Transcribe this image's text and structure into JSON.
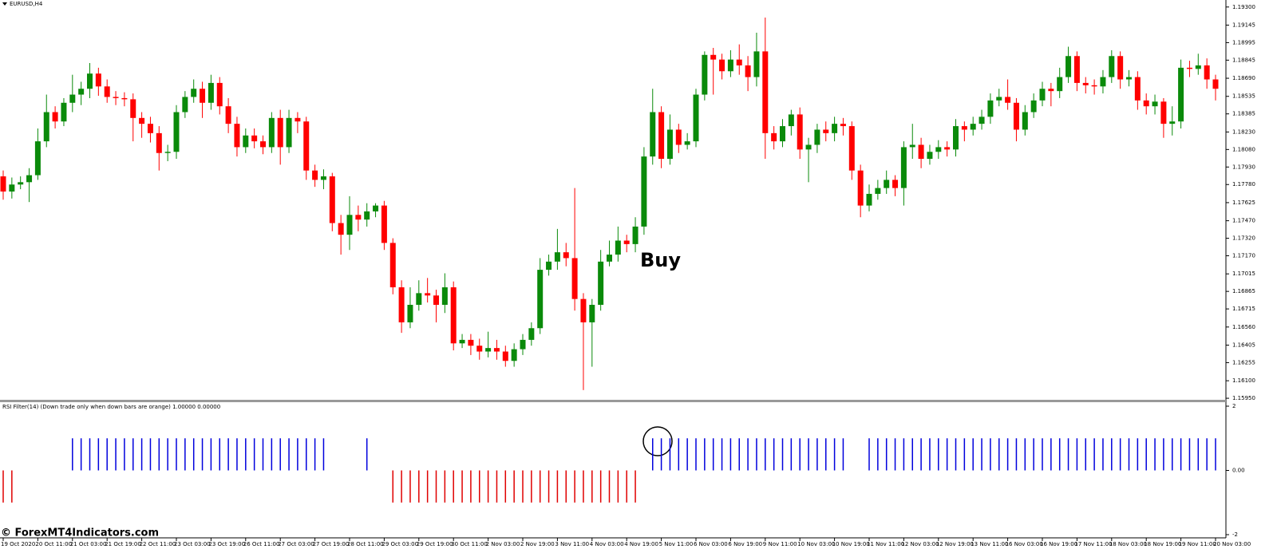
{
  "chart_data": [
    {
      "type": "candlestick",
      "title": "EURUSD,H4",
      "annotations": [
        "Buy"
      ],
      "up_color": "#0a8a0a",
      "down_color": "#ff0000",
      "ylim": [
        1.1593,
        1.1936
      ],
      "yticks": [
        {
          "value": 1.193,
          "label": "1.19300"
        },
        {
          "value": 1.19145,
          "label": "1.19145"
        },
        {
          "value": 1.18995,
          "label": "1.18995"
        },
        {
          "value": 1.18845,
          "label": "1.18845"
        },
        {
          "value": 1.1869,
          "label": "1.18690"
        },
        {
          "value": 1.18535,
          "label": "1.18535"
        },
        {
          "value": 1.18385,
          "label": "1.18385"
        },
        {
          "value": 1.1823,
          "label": "1.18230"
        },
        {
          "value": 1.1808,
          "label": "1.18080"
        },
        {
          "value": 1.1793,
          "label": "1.17930"
        },
        {
          "value": 1.1778,
          "label": "1.17780"
        },
        {
          "value": 1.17625,
          "label": "1.17625"
        },
        {
          "value": 1.1747,
          "label": "1.17470"
        },
        {
          "value": 1.1732,
          "label": "1.17320"
        },
        {
          "value": 1.1717,
          "label": "1.17170"
        },
        {
          "value": 1.17015,
          "label": "1.17015"
        },
        {
          "value": 1.16865,
          "label": "1.16865"
        },
        {
          "value": 1.16715,
          "label": "1.16715"
        },
        {
          "value": 1.1656,
          "label": "1.16560"
        },
        {
          "value": 1.16405,
          "label": "1.16405"
        },
        {
          "value": 1.16255,
          "label": "1.16255"
        },
        {
          "value": 1.161,
          "label": "1.16100"
        },
        {
          "value": 1.1595,
          "label": "1.15950"
        }
      ],
      "categories": [
        "19 Oct 2020",
        null,
        null,
        null,
        "20 Oct 11:00",
        null,
        null,
        null,
        "21 Oct 03:00",
        null,
        null,
        null,
        "21 Oct 19:00",
        null,
        null,
        null,
        "22 Oct 11:00",
        null,
        null,
        null,
        "23 Oct 03:00",
        null,
        null,
        null,
        "23 Oct 19:00",
        null,
        null,
        null,
        "26 Oct 11:00",
        null,
        null,
        null,
        "27 Oct 03:00",
        null,
        null,
        null,
        "27 Oct 19:00",
        null,
        null,
        null,
        "28 Oct 11:00",
        null,
        null,
        null,
        "29 Oct 03:00",
        null,
        null,
        null,
        "29 Oct 19:00",
        null,
        null,
        null,
        "30 Oct 11:00",
        null,
        null,
        null,
        "2 Nov 03:00",
        null,
        null,
        null,
        "2 Nov 19:00",
        null,
        null,
        null,
        "3 Nov 11:00",
        null,
        null,
        null,
        "4 Nov 03:00",
        null,
        null,
        null,
        "4 Nov 19:00",
        null,
        null,
        null,
        "5 Nov 11:00",
        null,
        null,
        null,
        "6 Nov 03:00",
        null,
        null,
        null,
        "6 Nov 19:00",
        null,
        null,
        null,
        "9 Nov 11:00",
        null,
        null,
        null,
        "10 Nov 03:00",
        null,
        null,
        null,
        "10 Nov 19:00",
        null,
        null,
        null,
        "11 Nov 11:00",
        null,
        null,
        null,
        "12 Nov 03:00",
        null,
        null,
        null,
        "12 Nov 19:00",
        null,
        null,
        null,
        "13 Nov 11:00",
        null,
        null,
        null,
        "16 Nov 03:00",
        null,
        null,
        null,
        "16 Nov 19:00",
        null,
        null,
        null,
        "17 Nov 11:00",
        null,
        null,
        null,
        "18 Nov 03:00",
        null,
        null,
        null,
        "18 Nov 19:00",
        null,
        null,
        null,
        "19 Nov 11:00",
        null,
        null,
        null,
        "20 Nov 03:00"
      ],
      "open": [
        1.1785,
        1.1772,
        1.1778,
        1.178,
        1.1786,
        1.1815,
        1.184,
        1.1832,
        1.1848,
        1.1855,
        1.186,
        1.1873,
        1.1862,
        1.1853,
        1.1852,
        1.1851,
        1.1835,
        1.183,
        1.1822,
        1.1805,
        1.1806,
        1.184,
        1.1853,
        1.186,
        1.1848,
        1.1865,
        1.1845,
        1.183,
        1.181,
        1.182,
        1.1815,
        1.181,
        1.1835,
        1.181,
        1.1835,
        1.1832,
        1.179,
        1.1782,
        1.1785,
        1.1745,
        1.1735,
        1.1752,
        1.1748,
        1.1755,
        1.176,
        1.1728,
        1.169,
        1.166,
        1.1675,
        1.1685,
        1.1683,
        1.1675,
        1.169,
        1.1642,
        1.1645,
        1.164,
        1.1635,
        1.1638,
        1.1635,
        1.1627,
        1.1637,
        1.1645,
        1.1655,
        1.1705,
        1.1712,
        1.172,
        1.1715,
        1.168,
        1.166,
        1.1675,
        1.1712,
        1.1718,
        1.173,
        1.1727,
        1.1742,
        1.1802,
        1.184,
        1.18,
        1.1825,
        1.1812,
        1.1815,
        1.1855,
        1.1889,
        1.1885,
        1.1875,
        1.1885,
        1.188,
        1.187,
        1.1892,
        1.1822,
        1.1815,
        1.1828,
        1.1838,
        1.1808,
        1.1812,
        1.1825,
        1.1822,
        1.183,
        1.1828,
        1.179,
        1.176,
        1.177,
        1.1775,
        1.1782,
        1.1775,
        1.181,
        1.1812,
        1.18,
        1.1806,
        1.181,
        1.1808,
        1.1828,
        1.1825,
        1.183,
        1.1836,
        1.185,
        1.1853,
        1.1848,
        1.1825,
        1.184,
        1.185,
        1.186,
        1.1858,
        1.187,
        1.1888,
        1.1865,
        1.1863,
        1.1862,
        1.187,
        1.1888,
        1.1868,
        1.187,
        1.185,
        1.1845,
        1.1849,
        1.183,
        1.1832,
        1.1878,
        1.1877,
        1.188,
        1.1868
      ],
      "high": [
        1.179,
        1.1784,
        1.1785,
        1.1792,
        1.1826,
        1.1855,
        1.1845,
        1.1852,
        1.1872,
        1.1866,
        1.1882,
        1.1878,
        1.1868,
        1.1858,
        1.1857,
        1.1856,
        1.184,
        1.1836,
        1.1828,
        1.1812,
        1.1846,
        1.1858,
        1.1868,
        1.1866,
        1.1872,
        1.187,
        1.1852,
        1.1836,
        1.1826,
        1.1826,
        1.182,
        1.184,
        1.1842,
        1.1842,
        1.184,
        1.1836,
        1.1795,
        1.1791,
        1.1788,
        1.1752,
        1.1768,
        1.176,
        1.1762,
        1.1762,
        1.1764,
        1.1732,
        1.1696,
        1.169,
        1.1696,
        1.1698,
        1.1688,
        1.1702,
        1.1695,
        1.165,
        1.165,
        1.1646,
        1.1652,
        1.1645,
        1.164,
        1.1642,
        1.165,
        1.166,
        1.1715,
        1.1718,
        1.174,
        1.1728,
        1.1775,
        1.1685,
        1.168,
        1.1722,
        1.173,
        1.1742,
        1.1735,
        1.175,
        1.181,
        1.186,
        1.1845,
        1.1838,
        1.183,
        1.1822,
        1.186,
        1.1892,
        1.1895,
        1.189,
        1.1893,
        1.1898,
        1.1888,
        1.1908,
        1.1921,
        1.1828,
        1.1834,
        1.1842,
        1.1844,
        1.1818,
        1.183,
        1.1832,
        1.1836,
        1.1835,
        1.1832,
        1.1795,
        1.1778,
        1.1782,
        1.179,
        1.1786,
        1.1815,
        1.183,
        1.1818,
        1.1812,
        1.1816,
        1.1815,
        1.1834,
        1.1832,
        1.1836,
        1.1842,
        1.1856,
        1.186,
        1.1868,
        1.1852,
        1.1846,
        1.1856,
        1.1866,
        1.1865,
        1.1878,
        1.1896,
        1.1892,
        1.187,
        1.1868,
        1.1876,
        1.1893,
        1.1892,
        1.1876,
        1.1875,
        1.1856,
        1.1855,
        1.1852,
        1.1845,
        1.1885,
        1.1884,
        1.189,
        1.1886,
        1.1872
      ],
      "low": [
        1.1765,
        1.1766,
        1.1774,
        1.1763,
        1.1782,
        1.181,
        1.1826,
        1.1828,
        1.184,
        1.1846,
        1.1852,
        1.1854,
        1.1848,
        1.1846,
        1.1845,
        1.1815,
        1.1818,
        1.1814,
        1.179,
        1.1798,
        1.18,
        1.1835,
        1.1848,
        1.1835,
        1.1842,
        1.1838,
        1.1822,
        1.1802,
        1.1805,
        1.1809,
        1.1804,
        1.1805,
        1.1795,
        1.1805,
        1.1822,
        1.1782,
        1.1776,
        1.1774,
        1.1738,
        1.1718,
        1.1722,
        1.1738,
        1.1742,
        1.175,
        1.1722,
        1.1684,
        1.1651,
        1.1655,
        1.167,
        1.1677,
        1.166,
        1.1668,
        1.1636,
        1.1638,
        1.1632,
        1.1628,
        1.163,
        1.1628,
        1.1622,
        1.1622,
        1.1632,
        1.164,
        1.165,
        1.17,
        1.1705,
        1.1708,
        1.167,
        1.1602,
        1.1622,
        1.167,
        1.1708,
        1.1712,
        1.172,
        1.172,
        1.1735,
        1.1795,
        1.1792,
        1.1795,
        1.1805,
        1.1808,
        1.181,
        1.185,
        1.1855,
        1.1868,
        1.187,
        1.1872,
        1.1858,
        1.1862,
        1.18,
        1.1808,
        1.181,
        1.182,
        1.18,
        1.178,
        1.1805,
        1.1815,
        1.1815,
        1.182,
        1.1782,
        1.175,
        1.1755,
        1.1765,
        1.177,
        1.1768,
        1.176,
        1.18,
        1.1792,
        1.1795,
        1.18,
        1.1802,
        1.1802,
        1.1815,
        1.182,
        1.1825,
        1.183,
        1.1845,
        1.1842,
        1.1815,
        1.182,
        1.1835,
        1.1845,
        1.1845,
        1.1852,
        1.1865,
        1.1858,
        1.1856,
        1.1855,
        1.1856,
        1.1865,
        1.186,
        1.1862,
        1.1842,
        1.1838,
        1.1838,
        1.1818,
        1.182,
        1.1826,
        1.187,
        1.1872,
        1.186,
        1.185
      ],
      "close": [
        1.1772,
        1.1778,
        1.178,
        1.1786,
        1.1815,
        1.184,
        1.1832,
        1.1848,
        1.1855,
        1.186,
        1.1873,
        1.1862,
        1.1853,
        1.1852,
        1.1851,
        1.1835,
        1.183,
        1.1822,
        1.1805,
        1.1806,
        1.184,
        1.1853,
        1.186,
        1.1848,
        1.1865,
        1.1845,
        1.183,
        1.181,
        1.182,
        1.1815,
        1.181,
        1.1835,
        1.181,
        1.1835,
        1.1832,
        1.179,
        1.1782,
        1.1785,
        1.1745,
        1.1735,
        1.1752,
        1.1748,
        1.1755,
        1.176,
        1.1728,
        1.169,
        1.166,
        1.1675,
        1.1685,
        1.1683,
        1.1675,
        1.169,
        1.1642,
        1.1645,
        1.164,
        1.1635,
        1.1638,
        1.1635,
        1.1627,
        1.1637,
        1.1645,
        1.1655,
        1.1705,
        1.1712,
        1.172,
        1.1715,
        1.168,
        1.166,
        1.1675,
        1.1712,
        1.1718,
        1.173,
        1.1727,
        1.1742,
        1.1802,
        1.184,
        1.18,
        1.1825,
        1.1812,
        1.1815,
        1.1855,
        1.1889,
        1.1885,
        1.1875,
        1.1885,
        1.188,
        1.187,
        1.1892,
        1.1822,
        1.1815,
        1.1828,
        1.1838,
        1.1808,
        1.1812,
        1.1825,
        1.1822,
        1.183,
        1.1828,
        1.179,
        1.176,
        1.177,
        1.1775,
        1.1782,
        1.1775,
        1.181,
        1.1812,
        1.18,
        1.1806,
        1.181,
        1.1808,
        1.1828,
        1.1825,
        1.183,
        1.1836,
        1.185,
        1.1853,
        1.1848,
        1.1825,
        1.184,
        1.185,
        1.186,
        1.1858,
        1.187,
        1.1888,
        1.1865,
        1.1863,
        1.1862,
        1.187,
        1.1888,
        1.1868,
        1.187,
        1.185,
        1.1845,
        1.1849,
        1.183,
        1.1832,
        1.1878,
        1.1877,
        1.188,
        1.1868,
        1.186
      ]
    },
    {
      "type": "bar",
      "title": "RSI Filter(14)  (Down trade only when down bars are orange) 1.00000 0.00000",
      "up_color": "#0000dd",
      "down_color": "#e00000",
      "ylim": [
        -2,
        2
      ],
      "yticks": [
        2,
        {
          "value": 0,
          "label": "0.00"
        },
        -2
      ],
      "values": [
        -1,
        -1,
        0,
        0,
        0,
        0,
        0,
        0,
        1,
        1,
        1,
        1,
        1,
        1,
        1,
        1,
        1,
        1,
        1,
        1,
        1,
        1,
        1,
        1,
        1,
        1,
        1,
        1,
        1,
        1,
        1,
        1,
        1,
        1,
        1,
        1,
        1,
        1,
        0,
        0,
        0,
        0,
        1,
        0,
        0,
        -1,
        -1,
        -1,
        -1,
        -1,
        -1,
        -1,
        -1,
        -1,
        -1,
        -1,
        -1,
        -1,
        -1,
        -1,
        -1,
        -1,
        -1,
        -1,
        -1,
        -1,
        -1,
        -1,
        -1,
        -1,
        -1,
        -1,
        -1,
        -1,
        0,
        1,
        1,
        1,
        1,
        1,
        1,
        1,
        1,
        1,
        1,
        1,
        1,
        1,
        1,
        1,
        1,
        1,
        1,
        1,
        1,
        1,
        1,
        1,
        0,
        0,
        1,
        1,
        1,
        1,
        1,
        1,
        1,
        1,
        1,
        1,
        1,
        1,
        1,
        1,
        1,
        1,
        1,
        1,
        1,
        1,
        1,
        1,
        1,
        1,
        1,
        1,
        1,
        1,
        1,
        1,
        1,
        1,
        1,
        1,
        1,
        1,
        1,
        1,
        1,
        1,
        1
      ]
    }
  ],
  "watermark": "© ForexMT4Indicators.com"
}
